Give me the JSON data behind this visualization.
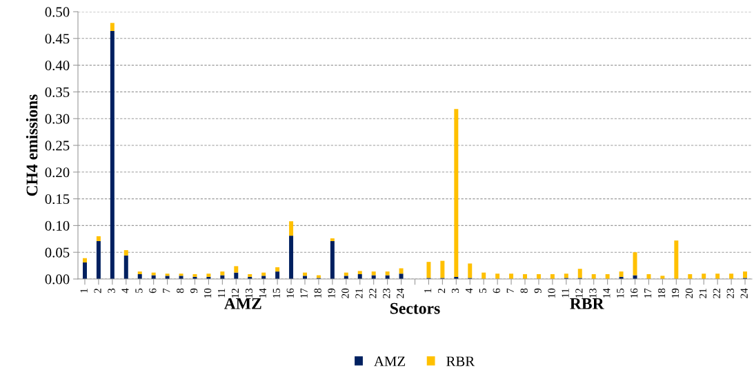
{
  "chart_data": {
    "type": "bar",
    "stacked": true,
    "xlabel": "Sectors",
    "ylabel": "CH4 emissions",
    "categories": [
      "1",
      "2",
      "3",
      "4",
      "5",
      "6",
      "7",
      "8",
      "9",
      "10",
      "11",
      "12",
      "13",
      "14",
      "15",
      "16",
      "17",
      "18",
      "19",
      "20",
      "21",
      "22",
      "23",
      "24",
      null,
      "1",
      "2",
      "3",
      "4",
      "5",
      "6",
      "7",
      "8",
      "9",
      "10",
      "11",
      "12",
      "13",
      "14",
      "15",
      "16",
      "17",
      "18",
      "19",
      "20",
      "21",
      "22",
      "23",
      "24"
    ],
    "series": [
      {
        "name": "AMZ",
        "color": "#002060",
        "values": [
          0.031,
          0.071,
          0.464,
          0.044,
          0.009,
          0.007,
          0.006,
          0.006,
          0.004,
          0.004,
          0.007,
          0.012,
          0.004,
          0.006,
          0.014,
          0.081,
          0.006,
          0.002,
          0.071,
          0.006,
          0.009,
          0.007,
          0.007,
          0.01,
          null,
          0.002,
          0.002,
          0.004,
          0.002,
          0,
          0,
          0,
          0,
          0,
          0,
          0.002,
          0.002,
          0,
          0,
          0.004,
          0.007,
          0,
          0,
          0,
          0,
          0,
          0,
          0,
          0.002
        ]
      },
      {
        "name": "RBR",
        "color": "#ffc000",
        "values": [
          0.008,
          0.009,
          0.015,
          0.01,
          0.005,
          0.005,
          0.004,
          0.004,
          0.005,
          0.006,
          0.007,
          0.012,
          0.005,
          0.006,
          0.008,
          0.027,
          0.006,
          0.005,
          0.005,
          0.006,
          0.006,
          0.007,
          0.007,
          0.01,
          null,
          0.03,
          0.032,
          0.314,
          0.027,
          0.012,
          0.01,
          0.01,
          0.009,
          0.009,
          0.009,
          0.008,
          0.017,
          0.009,
          0.009,
          0.01,
          0.043,
          0.009,
          0.006,
          0.072,
          0.009,
          0.01,
          0.01,
          0.01,
          0.012
        ]
      }
    ],
    "ylim": [
      0,
      0.5
    ],
    "yticks": [
      {
        "value": 0,
        "label": "0.00"
      },
      {
        "value": 0.05,
        "label": "0.05"
      },
      {
        "value": 0.1,
        "label": "0.10"
      },
      {
        "value": 0.15,
        "label": "0.15"
      },
      {
        "value": 0.2,
        "label": "0.20"
      },
      {
        "value": 0.25,
        "label": "0.25"
      },
      {
        "value": 0.3,
        "label": "0.30"
      },
      {
        "value": 0.35,
        "label": "0.35"
      },
      {
        "value": 0.4,
        "label": "0.40"
      },
      {
        "value": 0.45,
        "label": "0.45"
      },
      {
        "value": 0.5,
        "label": "0.50"
      }
    ],
    "annotations": [
      "AMZ",
      "RBR"
    ],
    "grid": "y",
    "legend": "bottom"
  }
}
